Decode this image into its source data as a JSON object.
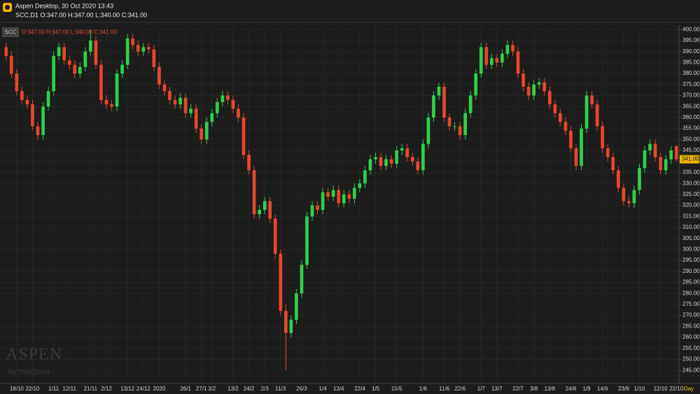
{
  "header": {
    "app_line": "Aspen Desktop, 30 Oct 2020 13:43",
    "symbol_line": "SCC,D1 O:347.00 H:347.00 L:340.00 C:341.00",
    "watermark": "ASPEN",
    "watermark_by": "by ThaiQuest"
  },
  "chart_data": {
    "type": "candlestick",
    "legend_symbol": "SCC",
    "legend_ohlc": "O:347.00 H:347.00 L:340.00 C:341.00",
    "x_label": "Day",
    "up_color": "#2fd14a",
    "down_color": "#e5482c",
    "grid": true,
    "categories": [
      null,
      null,
      "18/10",
      null,
      null,
      "22/10",
      null,
      null,
      null,
      "1/11",
      null,
      null,
      "12/11",
      null,
      null,
      null,
      "21/11",
      null,
      null,
      "2/12",
      null,
      null,
      null,
      "13/12",
      null,
      null,
      "24/12",
      null,
      null,
      "2020",
      null,
      null,
      null,
      null,
      "26/1",
      null,
      null,
      "27/1",
      null,
      "3/2",
      null,
      null,
      null,
      "13/2",
      null,
      null,
      "24/2",
      null,
      null,
      "2/3",
      null,
      null,
      "11/3",
      null,
      null,
      null,
      "26/3",
      null,
      null,
      null,
      "1/4",
      null,
      null,
      "13/4",
      null,
      null,
      null,
      "22/4",
      null,
      null,
      "1/5",
      null,
      null,
      null,
      "15/5",
      null,
      null,
      null,
      null,
      "1/6",
      null,
      null,
      null,
      "11/6",
      null,
      null,
      "22/6",
      null,
      null,
      null,
      "1/7",
      null,
      null,
      "13/7",
      null,
      null,
      null,
      "22/7",
      null,
      null,
      "3/8",
      null,
      null,
      "13/8",
      null,
      null,
      null,
      "24/8",
      null,
      null,
      "1/9",
      null,
      null,
      "14/9",
      null,
      null,
      null,
      "23/9",
      null,
      null,
      "1/10",
      null,
      null,
      null,
      "12/10",
      null,
      null,
      "22/10"
    ],
    "open": [
      392,
      388,
      380,
      372,
      368,
      366,
      356,
      352,
      365,
      372,
      388,
      392,
      386,
      384,
      380,
      383,
      390,
      395,
      384,
      368,
      366,
      365,
      380,
      384,
      396,
      393,
      390,
      392,
      391,
      383,
      375,
      372,
      368,
      366,
      369,
      362,
      364,
      355,
      350,
      358,
      362,
      367,
      370,
      368,
      364,
      360,
      343,
      336,
      316,
      318,
      322,
      314,
      298,
      272,
      262,
      268,
      280,
      293,
      315,
      320,
      318,
      326,
      324,
      327,
      321,
      325,
      323,
      328,
      330,
      336,
      341,
      342,
      338,
      341,
      339,
      345,
      346,
      342,
      340,
      336,
      348,
      360,
      370,
      374,
      360,
      356,
      356,
      352,
      362,
      370,
      380,
      392,
      384,
      387,
      385,
      389,
      393,
      390,
      380,
      374,
      370,
      375,
      376,
      372,
      366,
      362,
      358,
      354,
      346,
      338,
      355,
      370,
      366,
      356,
      346,
      342,
      336,
      328,
      322,
      321,
      327,
      337,
      345,
      348,
      342,
      336,
      341,
      347
    ],
    "high": [
      394,
      390,
      382,
      374,
      370,
      368,
      358,
      367,
      374,
      390,
      394,
      394,
      388,
      386,
      385,
      392,
      400,
      397,
      386,
      370,
      368,
      382,
      386,
      398,
      398,
      395,
      394,
      394,
      393,
      385,
      377,
      374,
      370,
      371,
      371,
      366,
      366,
      357,
      360,
      364,
      369,
      372,
      372,
      370,
      366,
      362,
      345,
      338,
      320,
      324,
      324,
      316,
      300,
      275,
      270,
      282,
      295,
      317,
      322,
      322,
      328,
      328,
      329,
      329,
      327,
      327,
      330,
      332,
      338,
      343,
      344,
      344,
      343,
      343,
      347,
      348,
      348,
      344,
      342,
      350,
      362,
      372,
      376,
      376,
      362,
      358,
      358,
      364,
      372,
      382,
      394,
      394,
      389,
      389,
      391,
      395,
      395,
      392,
      382,
      376,
      377,
      378,
      378,
      374,
      368,
      364,
      360,
      356,
      348,
      357,
      372,
      372,
      368,
      358,
      348,
      344,
      338,
      330,
      324,
      329,
      339,
      347,
      350,
      350,
      344,
      343,
      347,
      347
    ],
    "low": [
      386,
      378,
      370,
      366,
      364,
      354,
      350,
      350,
      363,
      370,
      386,
      384,
      382,
      378,
      378,
      381,
      388,
      382,
      366,
      364,
      363,
      363,
      378,
      382,
      391,
      388,
      388,
      389,
      381,
      373,
      370,
      366,
      364,
      364,
      360,
      360,
      353,
      348,
      348,
      356,
      360,
      365,
      366,
      362,
      358,
      341,
      334,
      314,
      314,
      316,
      312,
      296,
      270,
      245,
      260,
      266,
      278,
      291,
      313,
      316,
      316,
      322,
      322,
      319,
      319,
      321,
      321,
      326,
      328,
      334,
      339,
      336,
      336,
      337,
      337,
      343,
      340,
      338,
      334,
      334,
      346,
      358,
      368,
      358,
      354,
      354,
      350,
      350,
      360,
      368,
      378,
      382,
      382,
      383,
      383,
      387,
      388,
      378,
      372,
      368,
      368,
      373,
      370,
      364,
      360,
      356,
      352,
      344,
      336,
      336,
      353,
      364,
      354,
      344,
      340,
      334,
      326,
      320,
      319,
      319,
      325,
      335,
      343,
      340,
      334,
      334,
      339,
      340
    ],
    "close": [
      388,
      380,
      372,
      368,
      366,
      356,
      352,
      365,
      372,
      388,
      392,
      386,
      384,
      380,
      383,
      390,
      395,
      384,
      368,
      366,
      365,
      380,
      384,
      396,
      393,
      390,
      392,
      391,
      383,
      375,
      372,
      368,
      366,
      369,
      362,
      364,
      355,
      350,
      358,
      362,
      367,
      370,
      368,
      364,
      360,
      343,
      336,
      316,
      318,
      322,
      314,
      298,
      272,
      262,
      268,
      280,
      293,
      315,
      320,
      318,
      326,
      324,
      327,
      321,
      325,
      323,
      328,
      330,
      336,
      341,
      342,
      338,
      341,
      339,
      345,
      346,
      342,
      340,
      336,
      348,
      360,
      370,
      374,
      360,
      356,
      356,
      352,
      362,
      370,
      380,
      392,
      384,
      387,
      385,
      389,
      393,
      390,
      380,
      374,
      370,
      375,
      376,
      372,
      366,
      362,
      358,
      354,
      346,
      338,
      355,
      370,
      366,
      356,
      346,
      342,
      336,
      328,
      322,
      321,
      327,
      337,
      345,
      348,
      342,
      336,
      341,
      345,
      341
    ],
    "last_price": {
      "value": 341,
      "label": "341.00"
    },
    "ylim": [
      239,
      402
    ],
    "yticks": [
      {
        "value": 245,
        "label": "245.00"
      },
      {
        "value": 250,
        "label": "250.00"
      },
      {
        "value": 255,
        "label": "255.00"
      },
      {
        "value": 260,
        "label": "260.00"
      },
      {
        "value": 265,
        "label": "265.00"
      },
      {
        "value": 270,
        "label": "270.00"
      },
      {
        "value": 275,
        "label": "275.00"
      },
      {
        "value": 280,
        "label": "280.00"
      },
      {
        "value": 285,
        "label": "285.00"
      },
      {
        "value": 290,
        "label": "290.00"
      },
      {
        "value": 295,
        "label": "295.00"
      },
      {
        "value": 300,
        "label": "300.00"
      },
      {
        "value": 305,
        "label": "305.00"
      },
      {
        "value": 310,
        "label": "310.00"
      },
      {
        "value": 315,
        "label": "315.00"
      },
      {
        "value": 320,
        "label": "320.00"
      },
      {
        "value": 325,
        "label": "325.00"
      },
      {
        "value": 330,
        "label": "330.00"
      },
      {
        "value": 335,
        "label": "335.00"
      },
      {
        "value": 340,
        "label": "340.00"
      },
      {
        "value": 345,
        "label": "345.00"
      },
      {
        "value": 350,
        "label": "350.00"
      },
      {
        "value": 355,
        "label": "355.00"
      },
      {
        "value": 360,
        "label": "360.00"
      },
      {
        "value": 365,
        "label": "365.00"
      },
      {
        "value": 370,
        "label": "370.00"
      },
      {
        "value": 375,
        "label": "375.00"
      },
      {
        "value": 380,
        "label": "380.00"
      },
      {
        "value": 385,
        "label": "385.00"
      },
      {
        "value": 390,
        "label": "390.00"
      },
      {
        "value": 395,
        "label": "395.00"
      },
      {
        "value": 400,
        "label": "400.00"
      }
    ]
  }
}
